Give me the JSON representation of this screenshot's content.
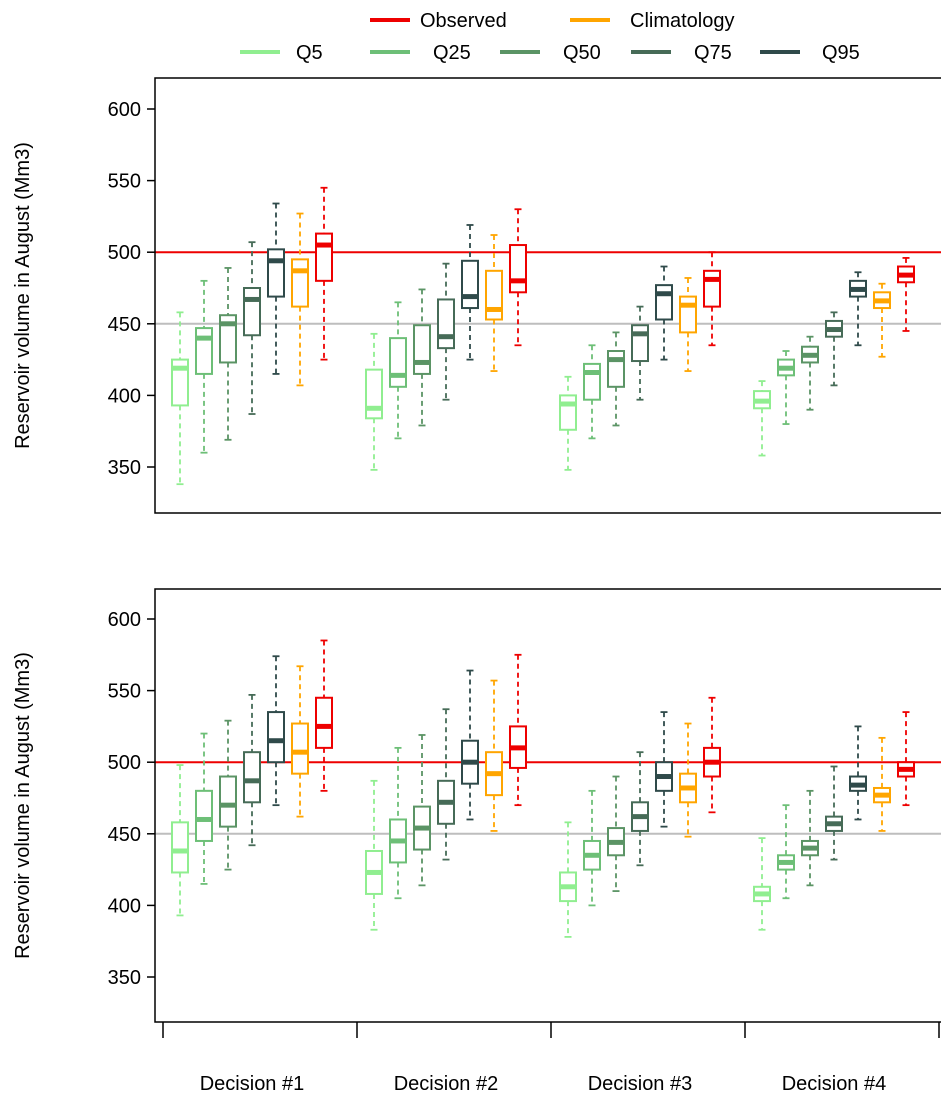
{
  "chart_data": {
    "type": "boxplot",
    "legend": {
      "placement": "top",
      "entries": [
        {
          "name": "Observed",
          "color": "#ee0000"
        },
        {
          "name": "Climatology",
          "color": "#ffa500"
        },
        {
          "name": "Q5",
          "color": "#90ee90"
        },
        {
          "name": "Q25",
          "color": "#6dbf77"
        },
        {
          "name": "Q50",
          "color": "#5b9465"
        },
        {
          "name": "Q75",
          "color": "#466b57"
        },
        {
          "name": "Q95",
          "color": "#2f4a4a"
        }
      ]
    },
    "series_order": [
      "Q5",
      "Q25",
      "Q50",
      "Q75",
      "Q95",
      "Climatology",
      "Observed"
    ],
    "series_colors": [
      "#90ee90",
      "#6dbf77",
      "#5b9465",
      "#466b57",
      "#2f4a4a",
      "#ffa500",
      "#ee0000"
    ],
    "categories": [
      "Decision #1",
      "Decision #2",
      "Decision #3",
      "Decision #4"
    ],
    "ylabel": "Reservoir volume in August (Mm3)",
    "yticks": [
      350,
      400,
      450,
      500,
      550,
      600
    ],
    "ylim": [
      320,
      620
    ],
    "reference_lines": [
      {
        "value": 500,
        "color": "#ee0000"
      },
      {
        "value": 450,
        "color": "#bebebe"
      }
    ],
    "panels": [
      {
        "boxes": [
          [
            [
              338,
              393,
              419,
              425,
              458
            ],
            [
              360,
              415,
              440,
              447,
              480
            ],
            [
              369,
              423,
              450,
              456,
              489
            ],
            [
              387,
              442,
              467,
              475,
              507
            ],
            [
              415,
              469,
              494,
              502,
              534
            ],
            [
              407,
              462,
              487,
              495,
              527
            ],
            [
              425,
              480,
              505,
              513,
              545
            ]
          ],
          [
            [
              348,
              384,
              391,
              418,
              443
            ],
            [
              370,
              406,
              414,
              440,
              465
            ],
            [
              379,
              415,
              423,
              449,
              474
            ],
            [
              397,
              433,
              441,
              467,
              492
            ],
            [
              425,
              461,
              469,
              494,
              519
            ],
            [
              417,
              453,
              460,
              487,
              512
            ],
            [
              435,
              472,
              480,
              505,
              530
            ]
          ],
          [
            [
              348,
              376,
              394,
              400,
              413
            ],
            [
              370,
              397,
              416,
              422,
              435
            ],
            [
              379,
              406,
              425,
              431,
              444
            ],
            [
              397,
              424,
              443,
              449,
              462
            ],
            [
              425,
              453,
              471,
              477,
              490
            ],
            [
              417,
              444,
              463,
              469,
              482
            ],
            [
              435,
              462,
              481,
              487,
              500
            ]
          ],
          [
            [
              358,
              391,
              396,
              403,
              410
            ],
            [
              380,
              414,
              419,
              425,
              431
            ],
            [
              390,
              423,
              428,
              434,
              441
            ],
            [
              407,
              441,
              446,
              452,
              458
            ],
            [
              435,
              469,
              474,
              480,
              486
            ],
            [
              427,
              461,
              466,
              472,
              478
            ],
            [
              445,
              479,
              484,
              490,
              496
            ]
          ]
        ]
      },
      {
        "boxes": [
          [
            [
              393,
              423,
              438,
              458,
              498
            ],
            [
              415,
              445,
              460,
              480,
              520
            ],
            [
              425,
              455,
              470,
              490,
              529
            ],
            [
              442,
              472,
              487,
              507,
              547
            ],
            [
              470,
              500,
              515,
              535,
              574
            ],
            [
              462,
              492,
              507,
              527,
              567
            ],
            [
              480,
              510,
              525,
              545,
              585
            ]
          ],
          [
            [
              383,
              408,
              423,
              438,
              487
            ],
            [
              405,
              430,
              445,
              460,
              510
            ],
            [
              414,
              439,
              454,
              469,
              519
            ],
            [
              432,
              457,
              472,
              487,
              537
            ],
            [
              460,
              485,
              500,
              515,
              564
            ],
            [
              452,
              477,
              492,
              507,
              557
            ],
            [
              470,
              496,
              510,
              525,
              575
            ]
          ],
          [
            [
              378,
              403,
              413,
              423,
              458
            ],
            [
              400,
              425,
              435,
              445,
              480
            ],
            [
              410,
              435,
              444,
              454,
              490
            ],
            [
              428,
              452,
              462,
              472,
              507
            ],
            [
              455,
              480,
              490,
              500,
              535
            ],
            [
              448,
              472,
              482,
              492,
              527
            ],
            [
              465,
              490,
              500,
              510,
              545
            ]
          ],
          [
            [
              383,
              403,
              408,
              413,
              447
            ],
            [
              405,
              425,
              430,
              435,
              470
            ],
            [
              414,
              435,
              440,
              445,
              480
            ],
            [
              432,
              452,
              457,
              462,
              497
            ],
            [
              460,
              480,
              484,
              490,
              525
            ],
            [
              452,
              472,
              477,
              482,
              517
            ],
            [
              470,
              490,
              495,
              500,
              535
            ]
          ]
        ]
      }
    ]
  }
}
